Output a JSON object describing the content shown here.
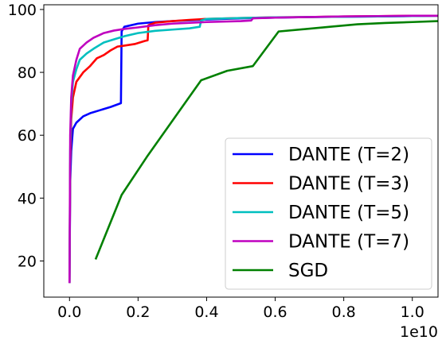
{
  "chart_data": {
    "type": "line",
    "x_multiplier_label": "1e10",
    "x_scale_factor": 10000000000,
    "xlim": [
      -0.075,
      1.075
    ],
    "ylim": [
      8.5,
      101.5
    ],
    "x_ticks": [
      0.0,
      0.2,
      0.4,
      0.6,
      0.8,
      1.0
    ],
    "x_tick_labels": [
      "0.0",
      "0.2",
      "0.4",
      "0.6",
      "0.8",
      "1.0"
    ],
    "y_ticks": [
      20,
      40,
      60,
      80,
      100
    ],
    "y_tick_labels": [
      "20",
      "40",
      "60",
      "80",
      "100"
    ],
    "grid": false,
    "legend_position": "lower-right",
    "series": [
      {
        "name": "DANTE (T=2)",
        "color": "#0000ff",
        "points": [
          [
            0.0,
            13
          ],
          [
            0.002,
            45
          ],
          [
            0.005,
            55
          ],
          [
            0.01,
            62
          ],
          [
            0.02,
            64
          ],
          [
            0.04,
            66
          ],
          [
            0.06,
            67
          ],
          [
            0.09,
            68
          ],
          [
            0.12,
            69
          ],
          [
            0.15,
            70.2
          ],
          [
            0.152,
            93
          ],
          [
            0.16,
            94.5
          ],
          [
            0.2,
            95.5
          ],
          [
            0.25,
            96
          ],
          [
            0.3,
            96.3
          ],
          [
            0.4,
            96.8
          ],
          [
            0.5,
            97.2
          ],
          [
            0.6,
            97.4
          ],
          [
            0.7,
            97.6
          ],
          [
            0.8,
            97.7
          ],
          [
            0.9,
            97.8
          ],
          [
            1.0,
            97.9
          ],
          [
            1.075,
            98
          ]
        ]
      },
      {
        "name": "DANTE (T=3)",
        "color": "#ff0000",
        "points": [
          [
            0.0,
            13
          ],
          [
            0.002,
            50
          ],
          [
            0.005,
            65
          ],
          [
            0.01,
            72
          ],
          [
            0.02,
            77
          ],
          [
            0.04,
            80
          ],
          [
            0.06,
            82
          ],
          [
            0.08,
            84.5
          ],
          [
            0.1,
            85.5
          ],
          [
            0.12,
            87
          ],
          [
            0.14,
            88.2
          ],
          [
            0.16,
            88.5
          ],
          [
            0.19,
            89
          ],
          [
            0.22,
            90
          ],
          [
            0.228,
            90.2
          ],
          [
            0.23,
            95
          ],
          [
            0.25,
            95.8
          ],
          [
            0.3,
            96.3
          ],
          [
            0.35,
            96.7
          ],
          [
            0.4,
            97
          ],
          [
            0.5,
            97.3
          ],
          [
            0.6,
            97.5
          ],
          [
            0.7,
            97.6
          ],
          [
            0.8,
            97.8
          ],
          [
            0.9,
            97.9
          ],
          [
            1.0,
            98
          ],
          [
            1.075,
            98
          ]
        ]
      },
      {
        "name": "DANTE (T=5)",
        "color": "#00bfbf",
        "points": [
          [
            0.0,
            13
          ],
          [
            0.002,
            55
          ],
          [
            0.005,
            70
          ],
          [
            0.01,
            77
          ],
          [
            0.02,
            81
          ],
          [
            0.03,
            84
          ],
          [
            0.05,
            86
          ],
          [
            0.07,
            87.5
          ],
          [
            0.1,
            89.5
          ],
          [
            0.13,
            90.5
          ],
          [
            0.16,
            91.5
          ],
          [
            0.2,
            92.5
          ],
          [
            0.25,
            93.2
          ],
          [
            0.3,
            93.6
          ],
          [
            0.35,
            94
          ],
          [
            0.38,
            94.5
          ],
          [
            0.384,
            96.5
          ],
          [
            0.4,
            97
          ],
          [
            0.5,
            97.3
          ],
          [
            0.6,
            97.5
          ],
          [
            0.7,
            97.6
          ],
          [
            0.8,
            97.7
          ],
          [
            0.9,
            97.8
          ],
          [
            1.0,
            97.9
          ],
          [
            1.075,
            98
          ]
        ]
      },
      {
        "name": "DANTE (T=7)",
        "color": "#bf00bf",
        "points": [
          [
            0.0,
            13
          ],
          [
            0.002,
            60
          ],
          [
            0.005,
            72
          ],
          [
            0.01,
            79
          ],
          [
            0.02,
            84
          ],
          [
            0.03,
            87.5
          ],
          [
            0.05,
            89.5
          ],
          [
            0.07,
            91
          ],
          [
            0.1,
            92.5
          ],
          [
            0.13,
            93.3
          ],
          [
            0.16,
            93.8
          ],
          [
            0.2,
            94.3
          ],
          [
            0.25,
            95
          ],
          [
            0.3,
            95.5
          ],
          [
            0.4,
            96
          ],
          [
            0.5,
            96.3
          ],
          [
            0.53,
            96.5
          ],
          [
            0.535,
            97.2
          ],
          [
            0.6,
            97.4
          ],
          [
            0.7,
            97.6
          ],
          [
            0.8,
            97.8
          ],
          [
            0.9,
            97.9
          ],
          [
            1.0,
            98
          ],
          [
            1.075,
            98
          ]
        ]
      },
      {
        "name": "SGD",
        "color": "#008000",
        "points": [
          [
            0.076,
            20.5
          ],
          [
            0.152,
            41
          ],
          [
            0.228,
            53.5
          ],
          [
            0.384,
            77.5
          ],
          [
            0.46,
            80.5
          ],
          [
            0.535,
            82
          ],
          [
            0.61,
            93
          ],
          [
            0.76,
            94.5
          ],
          [
            0.84,
            95.3
          ],
          [
            0.92,
            95.7
          ],
          [
            1.0,
            96
          ],
          [
            1.075,
            96.3
          ]
        ]
      }
    ]
  }
}
